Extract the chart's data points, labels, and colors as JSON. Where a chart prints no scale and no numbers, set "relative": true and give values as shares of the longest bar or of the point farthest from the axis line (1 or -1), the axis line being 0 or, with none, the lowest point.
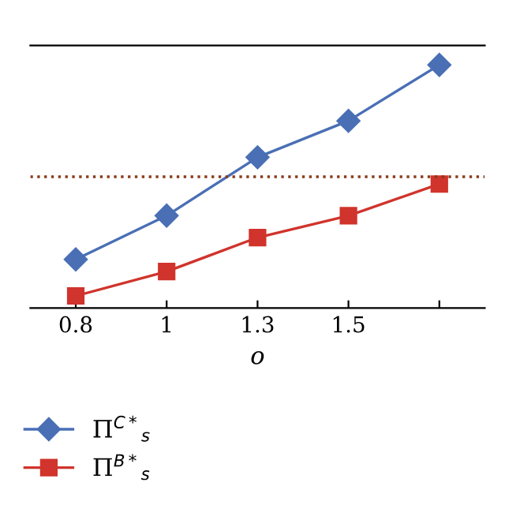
{
  "chart_data": {
    "type": "line",
    "relative": true,
    "xlabel": "o",
    "categories": [
      "0.8",
      "1",
      "1.3",
      "1.5",
      null
    ],
    "series": [
      {
        "name": "Π$^{C*}$$_{s}$",
        "color": "#4a6fb5",
        "marker": "diamond",
        "values": [
          0.2,
          0.38,
          0.62,
          0.77,
          1
        ]
      },
      {
        "name": "Π$^{B*}$$_{s}$",
        "color": "#d0342c",
        "marker": "square",
        "values": [
          0.05,
          0.15,
          0.29,
          0.38,
          0.51
        ]
      }
    ],
    "ref_lines": [
      {
        "axis": "y",
        "value": 0.54,
        "color": "#8b3a1a",
        "line_style": "dotted"
      }
    ],
    "legend": "bottom left",
    "grid": false
  }
}
